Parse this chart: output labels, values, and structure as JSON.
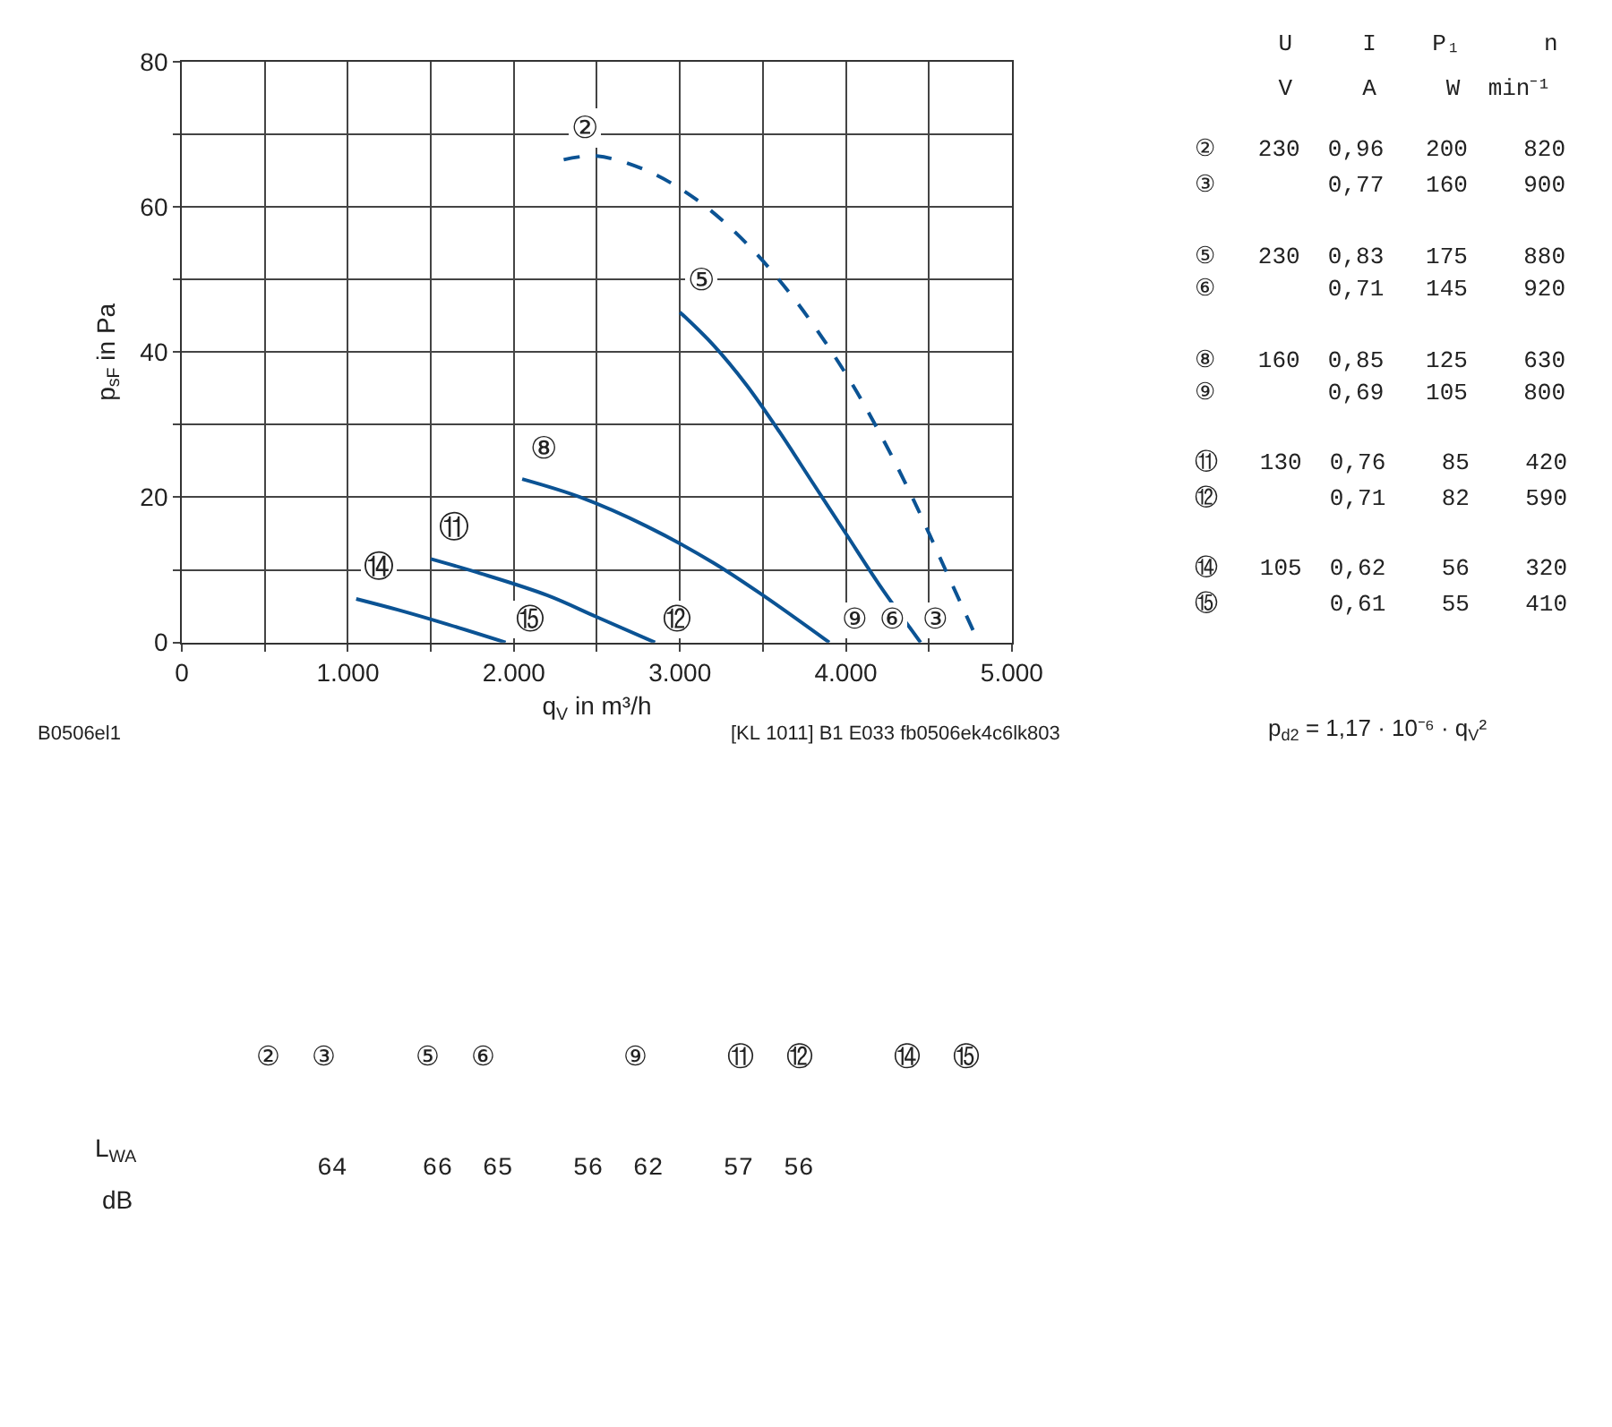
{
  "chart_data": {
    "type": "line",
    "xlabel": "q$_{V}$ in m³/h",
    "ylabel": "p$_{sF}$ in Pa",
    "xlim": [
      0,
      5000
    ],
    "ylim": [
      0,
      80
    ],
    "xticks": [
      {
        "value": 0,
        "label": "0"
      },
      {
        "value": 500,
        "label": null
      },
      {
        "value": 1000,
        "label": "1.000"
      },
      {
        "value": 1500,
        "label": null
      },
      {
        "value": 2000,
        "label": "2.000"
      },
      {
        "value": 2500,
        "label": null
      },
      {
        "value": 3000,
        "label": "3.000"
      },
      {
        "value": 3500,
        "label": null
      },
      {
        "value": 4000,
        "label": "4.000"
      },
      {
        "value": 4500,
        "label": null
      },
      {
        "value": 5000,
        "label": "5.000"
      }
    ],
    "yticks": [
      0,
      {
        "value": 10,
        "label": null
      },
      20,
      {
        "value": 30,
        "label": null
      },
      40,
      {
        "value": 50,
        "label": null
      },
      60,
      {
        "value": 70,
        "label": null
      },
      80
    ],
    "grid": true,
    "legend": false,
    "marker": "none",
    "series": [
      {
        "name": "②",
        "color": "#0b5394",
        "line_style": "dashed",
        "x": [
          2300,
          2500,
          2800,
          3100,
          3400,
          3700,
          4000,
          4200,
          4400,
          4600,
          4800
        ],
        "values": [
          66.5,
          67,
          65,
          61,
          55,
          47,
          37,
          29,
          20,
          10,
          0
        ]
      },
      {
        "name": "⑤",
        "color": "#0b5394",
        "line_style": "solid",
        "x": [
          3000,
          3200,
          3400,
          3600,
          3800,
          4000,
          4200,
          4450
        ],
        "values": [
          45.5,
          41,
          35.5,
          29,
          22,
          15,
          8,
          0
        ]
      },
      {
        "name": "⑧",
        "color": "#0b5394",
        "line_style": "solid",
        "x": [
          2050,
          2400,
          2800,
          3200,
          3500,
          3900
        ],
        "values": [
          22.5,
          20,
          16,
          11,
          6.5,
          0
        ]
      },
      {
        "name": "⑪",
        "color": "#0b5394",
        "line_style": "solid",
        "x": [
          1500,
          1800,
          2200,
          2500,
          2850
        ],
        "values": [
          11.5,
          9.5,
          6.5,
          3.5,
          0
        ]
      },
      {
        "name": "⑭",
        "color": "#0b5394",
        "line_style": "solid",
        "x": [
          1050,
          1300,
          1600,
          1950
        ],
        "values": [
          6,
          4.5,
          2.5,
          0
        ]
      }
    ],
    "annotations": [
      "③",
      "⑥",
      "⑨",
      "⑫",
      "⑮",
      "B0506el1",
      "[KL 1011] B1 E033 fb0506ek4c6lk803",
      "      U     I    P₁      n",
      "      V     A     W  min⁻¹",
      "②   230  0,96   200    820",
      "③        0,77   160    900",
      "⑤   230  0,83   175    880",
      "⑥        0,71   145    920",
      "⑧   160  0,85   125    630",
      "⑨        0,69   105    800",
      "⑪   130  0,76    85    420",
      "⑫        0,71    82    590",
      "⑭   105  0,62    56    320",
      "⑮        0,61    55    410",
      "p$_{d2}$ = 1,17 · 10⁻⁶ · q$_{V}$²",
      "②  ③     ⑤  ⑥        ⑨     ⑪  ⑫     ⑭  ⑮",
      "L$_{WA}$",
      "dB",
      "64     66  65    56  62    57  56"
    ]
  }
}
